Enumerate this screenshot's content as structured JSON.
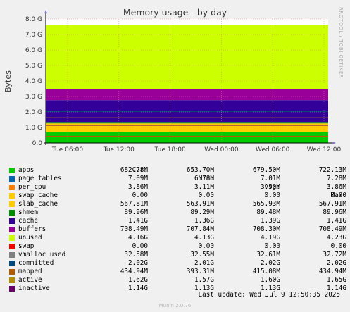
{
  "chart_data": {
    "type": "area",
    "title": "Memory usage - by day",
    "ylabel": "Bytes",
    "ylim": [
      0,
      8.0
    ],
    "yunit": "G",
    "y_ticks": [
      "0.0",
      "1.0 G",
      "2.0 G",
      "3.0 G",
      "4.0 G",
      "5.0 G",
      "6.0 G",
      "7.0 G",
      "8.0 G"
    ],
    "x_ticks": [
      "Tue 06:00",
      "Tue 12:00",
      "Tue 18:00",
      "Wed 00:00",
      "Wed 06:00",
      "Wed 12:00"
    ],
    "grid": true,
    "stacked_series_gb": [
      {
        "name": "apps",
        "value": 0.683,
        "color": "#00cc00"
      },
      {
        "name": "page_tables",
        "value": 0.007,
        "color": "#0066b3"
      },
      {
        "name": "per_cpu",
        "value": 0.004,
        "color": "#ff8000"
      },
      {
        "name": "swap_cache",
        "value": 0.0,
        "color": "#ffcc00"
      },
      {
        "name": "slab_cache",
        "value": 0.568,
        "color": "#ffcc00"
      },
      {
        "name": "shmem",
        "value": 0.09,
        "color": "#008f00"
      },
      {
        "name": "cache",
        "value": 1.41,
        "color": "#330099"
      },
      {
        "name": "buffers",
        "value": 0.708,
        "color": "#990099"
      },
      {
        "name": "unused",
        "value": 4.16,
        "color": "#ccff00"
      }
    ],
    "line_series_gb": [
      {
        "name": "committed",
        "value": 2.02,
        "color": "#00487d"
      },
      {
        "name": "mapped",
        "value": 0.435,
        "color": "#b35a00"
      },
      {
        "name": "active",
        "value": 1.62,
        "color": "#b38f00"
      },
      {
        "name": "inactive",
        "value": 1.14,
        "color": "#6b006b"
      }
    ]
  },
  "legend": {
    "headers": [
      "Cur:",
      "Min:",
      "Avg:",
      "Max:"
    ],
    "rows": [
      {
        "name": "apps",
        "color": "#00cc00",
        "cur": "682.78M",
        "min": "653.70M",
        "avg": "679.50M",
        "max": "722.13M"
      },
      {
        "name": "page_tables",
        "color": "#0066b3",
        "cur": "7.09M",
        "min": "6.78M",
        "avg": "7.01M",
        "max": "7.28M"
      },
      {
        "name": "per_cpu",
        "color": "#ff8000",
        "cur": "3.86M",
        "min": "3.11M",
        "avg": "3.50M",
        "max": "3.86M"
      },
      {
        "name": "swap_cache",
        "color": "#ffcc00",
        "cur": "0.00",
        "min": "0.00",
        "avg": "0.00",
        "max": "0.00"
      },
      {
        "name": "slab_cache",
        "color": "#ffcc00",
        "cur": "567.81M",
        "min": "563.91M",
        "avg": "565.93M",
        "max": "567.91M"
      },
      {
        "name": "shmem",
        "color": "#008f00",
        "cur": "89.96M",
        "min": "89.29M",
        "avg": "89.48M",
        "max": "89.96M"
      },
      {
        "name": "cache",
        "color": "#330099",
        "cur": "1.41G",
        "min": "1.36G",
        "avg": "1.39G",
        "max": "1.41G"
      },
      {
        "name": "buffers",
        "color": "#990099",
        "cur": "708.49M",
        "min": "707.84M",
        "avg": "708.30M",
        "max": "708.49M"
      },
      {
        "name": "unused",
        "color": "#ccff00",
        "cur": "4.16G",
        "min": "4.13G",
        "avg": "4.19G",
        "max": "4.23G"
      },
      {
        "name": "swap",
        "color": "#ff0000",
        "cur": "0.00",
        "min": "0.00",
        "avg": "0.00",
        "max": "0.00"
      },
      {
        "name": "vmalloc_used",
        "color": "#808080",
        "cur": "32.58M",
        "min": "32.55M",
        "avg": "32.61M",
        "max": "32.72M"
      },
      {
        "name": "committed",
        "color": "#00487d",
        "cur": "2.02G",
        "min": "2.01G",
        "avg": "2.02G",
        "max": "2.02G"
      },
      {
        "name": "mapped",
        "color": "#b35a00",
        "cur": "434.94M",
        "min": "393.31M",
        "avg": "415.08M",
        "max": "434.94M"
      },
      {
        "name": "active",
        "color": "#b38f00",
        "cur": "1.62G",
        "min": "1.57G",
        "avg": "1.60G",
        "max": "1.65G"
      },
      {
        "name": "inactive",
        "color": "#6b006b",
        "cur": "1.14G",
        "min": "1.13G",
        "avg": "1.13G",
        "max": "1.14G"
      }
    ]
  },
  "last_update": "Last update: Wed Jul  9 12:50:35 2025",
  "side_text": "RRDTOOL / TOBI OETIKER",
  "footer": "Munin 2.0.76"
}
